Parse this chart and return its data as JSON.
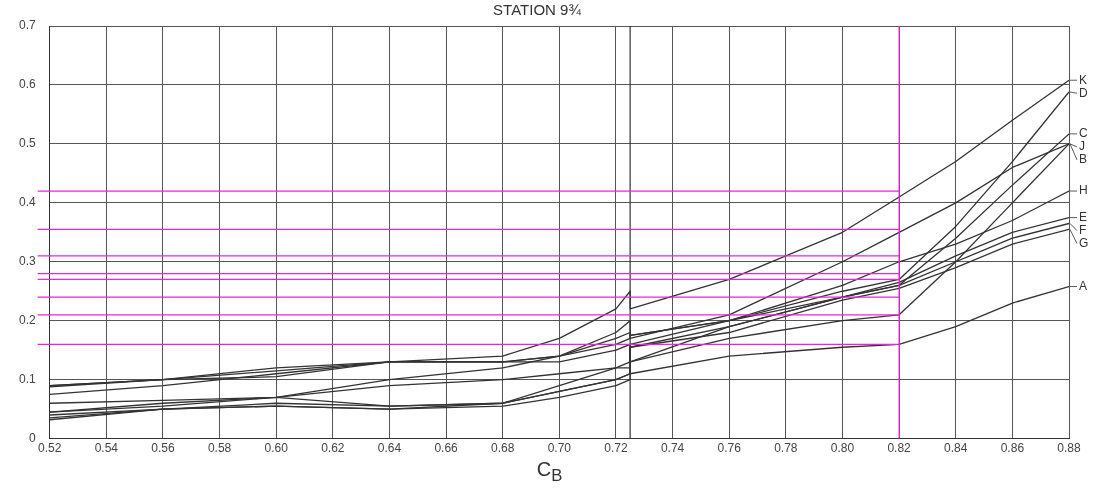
{
  "chart_data": {
    "type": "line",
    "title": "STATION 9¾",
    "xlabel": "C$_{B}$",
    "x": [
      0.52,
      0.56,
      0.6,
      0.64,
      0.68,
      0.7,
      0.72,
      0.725,
      0.725,
      0.76,
      0.8,
      0.82,
      0.84,
      0.86,
      0.88
    ],
    "series": [
      {
        "name": "K",
        "color": "#333333",
        "values": [
          0.088,
          0.1,
          0.12,
          0.13,
          0.14,
          0.17,
          0.22,
          0.25,
          0.22,
          0.27,
          0.35,
          0.41,
          0.47,
          0.54,
          0.608
        ]
      },
      {
        "name": "J",
        "color": "#333333",
        "values": [
          0.06,
          0.065,
          0.07,
          0.1,
          0.12,
          0.14,
          0.18,
          0.2,
          0.17,
          0.21,
          0.3,
          0.35,
          0.4,
          0.46,
          0.5
        ]
      },
      {
        "name": "H",
        "color": "#333333",
        "values": [
          0.04,
          0.05,
          0.055,
          0.05,
          0.06,
          0.09,
          0.12,
          0.13,
          0.16,
          0.2,
          0.26,
          0.3,
          0.33,
          0.37,
          0.42
        ]
      },
      {
        "name": "D",
        "color": "#333333",
        "values": [
          0.09,
          0.1,
          0.115,
          0.13,
          0.13,
          0.14,
          0.17,
          0.18,
          0.175,
          0.2,
          0.25,
          0.27,
          0.36,
          0.47,
          0.588
        ]
      },
      {
        "name": "C",
        "color": "#333333",
        "values": [
          0.075,
          0.09,
          0.11,
          0.13,
          0.13,
          0.14,
          0.16,
          0.17,
          0.175,
          0.2,
          0.24,
          0.26,
          0.34,
          0.43,
          0.517
        ]
      },
      {
        "name": "B",
        "color": "#333333",
        "values": [
          0.09,
          0.1,
          0.105,
          0.13,
          0.13,
          0.13,
          0.15,
          0.16,
          0.13,
          0.17,
          0.2,
          0.21,
          0.3,
          0.4,
          0.5
        ]
      },
      {
        "name": "E",
        "color": "#333333",
        "values": [
          0.045,
          0.055,
          0.07,
          0.055,
          0.06,
          0.08,
          0.1,
          0.11,
          0.13,
          0.19,
          0.24,
          0.265,
          0.31,
          0.35,
          0.375
        ]
      },
      {
        "name": "F",
        "color": "#333333",
        "values": [
          0.035,
          0.05,
          0.06,
          0.055,
          0.06,
          0.08,
          0.1,
          0.11,
          0.155,
          0.19,
          0.24,
          0.26,
          0.3,
          0.34,
          0.365
        ]
      },
      {
        "name": "G",
        "color": "#333333",
        "values": [
          0.032,
          0.05,
          0.055,
          0.05,
          0.055,
          0.07,
          0.09,
          0.1,
          0.155,
          0.18,
          0.235,
          0.255,
          0.29,
          0.33,
          0.355
        ]
      },
      {
        "name": "A",
        "color": "#333333",
        "values": [
          0.045,
          0.06,
          0.07,
          0.09,
          0.1,
          0.11,
          0.12,
          0.12,
          0.11,
          0.14,
          0.155,
          0.16,
          0.19,
          0.23,
          0.258
        ]
      }
    ],
    "xlim": [
      0.52,
      0.88
    ],
    "xticks": [
      0.52,
      0.54,
      0.56,
      0.58,
      {
        "value": 0.6,
        "label": "0.60"
      },
      0.62,
      0.64,
      0.66,
      0.68,
      {
        "value": 0.7,
        "label": "0.70"
      },
      0.72,
      0.74,
      0.76,
      0.78,
      {
        "value": 0.8,
        "label": "0.80"
      },
      0.82,
      0.84,
      0.86,
      0.88
    ],
    "ylim": [
      0,
      0.7
    ],
    "yticks": [
      0,
      0.1,
      0.2,
      0.3,
      0.4,
      0.5,
      0.6,
      0.7
    ],
    "ref_lines": [
      {
        "axis": "x",
        "value": 0.82,
        "color": "#ee22dd"
      },
      {
        "axis": "x",
        "value": 0.725,
        "color": "#333333"
      },
      {
        "axis": "y",
        "value": 0.42,
        "color": "#ee22dd"
      },
      {
        "axis": "y",
        "value": 0.355,
        "color": "#ee22dd"
      },
      {
        "axis": "y",
        "value": 0.31,
        "color": "#ee22dd"
      },
      {
        "axis": "y",
        "value": 0.28,
        "color": "#ee22dd"
      },
      {
        "axis": "y",
        "value": 0.27,
        "color": "#ee22dd"
      },
      {
        "axis": "y",
        "value": 0.24,
        "color": "#ee22dd"
      },
      {
        "axis": "y",
        "value": 0.21,
        "color": "#ee22dd"
      },
      {
        "axis": "y",
        "value": 0.16,
        "color": "#ee22dd"
      }
    ],
    "grid": true,
    "legend": "right",
    "marker": "none",
    "line_style": "solid"
  }
}
